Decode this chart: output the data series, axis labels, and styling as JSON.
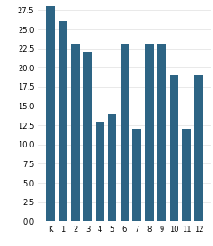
{
  "categories": [
    "K",
    "1",
    "2",
    "3",
    "4",
    "5",
    "6",
    "7",
    "8",
    "9",
    "10",
    "11",
    "12"
  ],
  "values": [
    28,
    26,
    23,
    22,
    13,
    14,
    23,
    12,
    23,
    23,
    19,
    12,
    19
  ],
  "bar_color": "#2d6484",
  "ylim": [
    0,
    28.5
  ],
  "yticks": [
    0,
    2.5,
    5,
    7.5,
    10,
    12.5,
    15,
    17.5,
    20,
    22.5,
    25,
    27.5
  ],
  "background_color": "#ffffff",
  "grid_color": "#e0e0e0",
  "tick_fontsize": 6.0,
  "bar_width": 0.7
}
